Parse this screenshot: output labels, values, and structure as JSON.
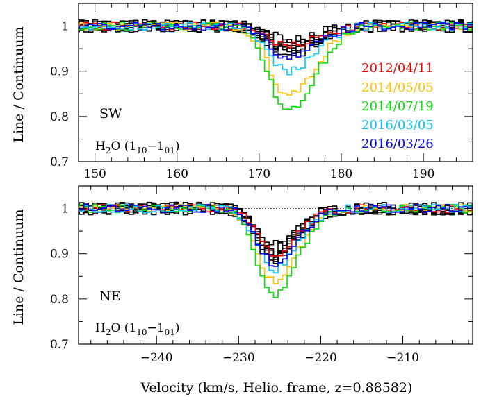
{
  "figure": {
    "ylabel": "Line / Continuum",
    "xlabel": "Velocity (km/s, Helio. frame, z=0.88582)"
  },
  "legend": [
    {
      "label": "2012/04/11",
      "color": "#ff0000"
    },
    {
      "label": "2014/05/05",
      "color": "#ffc000"
    },
    {
      "label": "2014/07/19",
      "color": "#00e000"
    },
    {
      "label": "2016/03/05",
      "color": "#00c8ff"
    },
    {
      "label": "2016/03/26",
      "color": "#0000ff"
    }
  ],
  "panels": [
    {
      "name": "SW",
      "molecule": "H",
      "molecule_sub": "2",
      "molecule_tail": "O (1",
      "trans_a": "10",
      "trans_mid": "−1",
      "trans_b": "01",
      "trans_close": ")"
    },
    {
      "name": "NE",
      "molecule": "H",
      "molecule_sub": "2",
      "molecule_tail": "O (1",
      "trans_a": "10",
      "trans_mid": "−1",
      "trans_b": "01",
      "trans_close": ")"
    }
  ],
  "chart_data": [
    {
      "type": "line",
      "panel": "SW",
      "xlim": [
        148,
        196
      ],
      "ylim": [
        0.7,
        1.05
      ],
      "xticks": [
        150,
        160,
        170,
        180,
        190
      ],
      "yticks": [
        0.7,
        0.8,
        0.9,
        1
      ],
      "ytick_labels": [
        "0.7",
        "0.8",
        "0.9",
        "1"
      ],
      "continuum": 1.0,
      "line_center": 173.3,
      "line_width": 2.6,
      "series": [
        {
          "name": "2012/04/11",
          "color": "#ff0000",
          "min_value": 0.955
        },
        {
          "name": "2014/05/05",
          "color": "#ffc000",
          "min_value": 0.845
        },
        {
          "name": "2014/07/19",
          "color": "#00e000",
          "min_value": 0.81
        },
        {
          "name": "2016/03/05",
          "color": "#00c8ff",
          "min_value": 0.9
        },
        {
          "name": "2016/03/26",
          "color": "#0000ff",
          "min_value": 0.93
        }
      ],
      "grey_epochs_min": [
        0.94,
        0.945,
        0.95,
        0.955,
        0.96,
        0.965
      ]
    },
    {
      "type": "line",
      "panel": "NE",
      "xlim": [
        -249.5,
        -201.5
      ],
      "ylim": [
        0.7,
        1.05
      ],
      "xticks": [
        -240,
        -230,
        -220,
        -210
      ],
      "xtick_labels": [
        "−240",
        "−230",
        "−220",
        "−210"
      ],
      "yticks": [
        0.7,
        0.8,
        0.9,
        1
      ],
      "ytick_labels": [
        "0.7",
        "0.8",
        "0.9",
        "1"
      ],
      "continuum": 1.0,
      "line_center": -226.0,
      "line_width": 2.3,
      "series": [
        {
          "name": "2012/04/11",
          "color": "#ff0000",
          "min_value": 0.9
        },
        {
          "name": "2014/05/05",
          "color": "#ffc000",
          "min_value": 0.84
        },
        {
          "name": "2014/07/19",
          "color": "#00e000",
          "min_value": 0.81
        },
        {
          "name": "2016/03/05",
          "color": "#00c8ff",
          "min_value": 0.865
        },
        {
          "name": "2016/03/26",
          "color": "#0000ff",
          "min_value": 0.88
        }
      ],
      "grey_epochs_min": [
        0.89,
        0.895,
        0.9,
        0.905,
        0.91,
        0.915
      ]
    }
  ]
}
